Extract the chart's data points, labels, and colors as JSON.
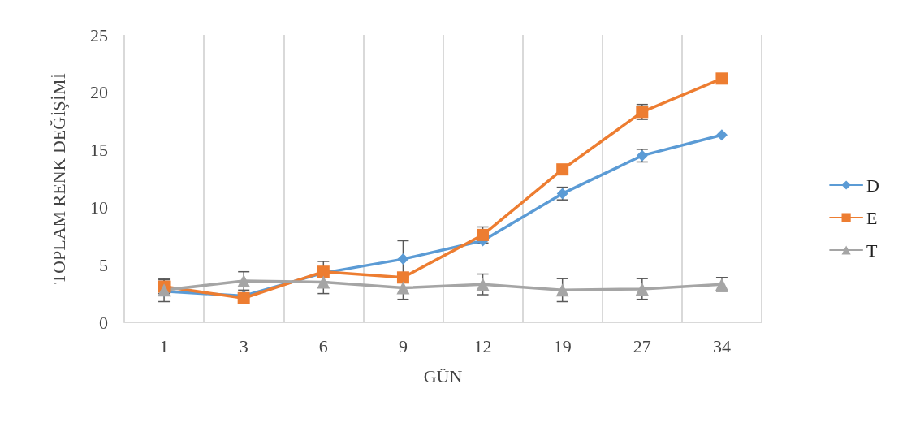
{
  "chart_data": {
    "type": "line",
    "xlabel": "GÜN",
    "ylabel": "TOPLAM RENK DEĞİŞİMİ",
    "categories": [
      "1",
      "3",
      "6",
      "9",
      "12",
      "19",
      "27",
      "34"
    ],
    "ylim": [
      0,
      25
    ],
    "yticks": [
      0,
      5,
      10,
      15,
      20,
      25
    ],
    "grid": "x",
    "legend": "right",
    "line_style": "solid",
    "series": [
      {
        "name": "D",
        "color": "#5b9bd5",
        "marker": "diamond",
        "values": [
          2.7,
          2.3,
          4.3,
          5.5,
          7.1,
          11.2,
          14.5,
          16.3
        ],
        "errors": [
          null,
          null,
          null,
          1.6,
          null,
          0.55,
          0.55,
          null
        ]
      },
      {
        "name": "E",
        "color": "#ed7d31",
        "marker": "square",
        "values": [
          3.1,
          2.1,
          4.4,
          3.9,
          7.6,
          13.3,
          18.3,
          21.2
        ],
        "errors": [
          0.6,
          null,
          0.9,
          null,
          0.7,
          null,
          0.65,
          null
        ]
      },
      {
        "name": "T",
        "color": "#a5a5a5",
        "marker": "triangle",
        "values": [
          2.8,
          3.6,
          3.5,
          3.0,
          3.3,
          2.8,
          2.9,
          3.3
        ],
        "errors": [
          1.0,
          0.8,
          1.0,
          1.0,
          0.9,
          1.0,
          0.9,
          0.6
        ]
      }
    ]
  }
}
